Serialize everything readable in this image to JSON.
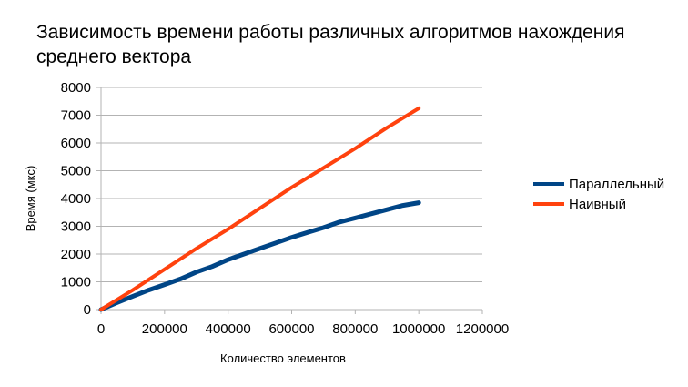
{
  "chart_data": {
    "type": "line",
    "title": "Зависимость времени работы различных алгоритмов нахождения среднего вектора",
    "xlabel": "Количество элементов",
    "ylabel": "Время (мкс)",
    "xlim": [
      0,
      1200000
    ],
    "ylim": [
      0,
      8000
    ],
    "x_ticks": [
      "0",
      "200000",
      "400000",
      "600000",
      "800000",
      "1000000",
      "1200000"
    ],
    "y_ticks": [
      "0",
      "1000",
      "2000",
      "3000",
      "4000",
      "5000",
      "6000",
      "7000",
      "8000"
    ],
    "grid": "horizontal",
    "legend_position": "right",
    "series": [
      {
        "name": "Параллельный",
        "color": "#004586",
        "x": [
          0,
          50000,
          100000,
          150000,
          200000,
          250000,
          300000,
          350000,
          400000,
          450000,
          500000,
          550000,
          600000,
          650000,
          700000,
          750000,
          800000,
          850000,
          900000,
          950000,
          1000000
        ],
        "y": [
          0,
          250,
          480,
          700,
          900,
          1100,
          1350,
          1550,
          1800,
          2000,
          2200,
          2400,
          2600,
          2780,
          2950,
          3150,
          3300,
          3450,
          3600,
          3750,
          3850
        ]
      },
      {
        "name": "Наивный",
        "color": "#ff420e",
        "x": [
          0,
          100000,
          200000,
          300000,
          400000,
          500000,
          600000,
          700000,
          800000,
          900000,
          1000000
        ],
        "y": [
          0,
          700,
          1450,
          2200,
          2900,
          3650,
          4400,
          5100,
          5800,
          6550,
          7250
        ]
      }
    ]
  }
}
